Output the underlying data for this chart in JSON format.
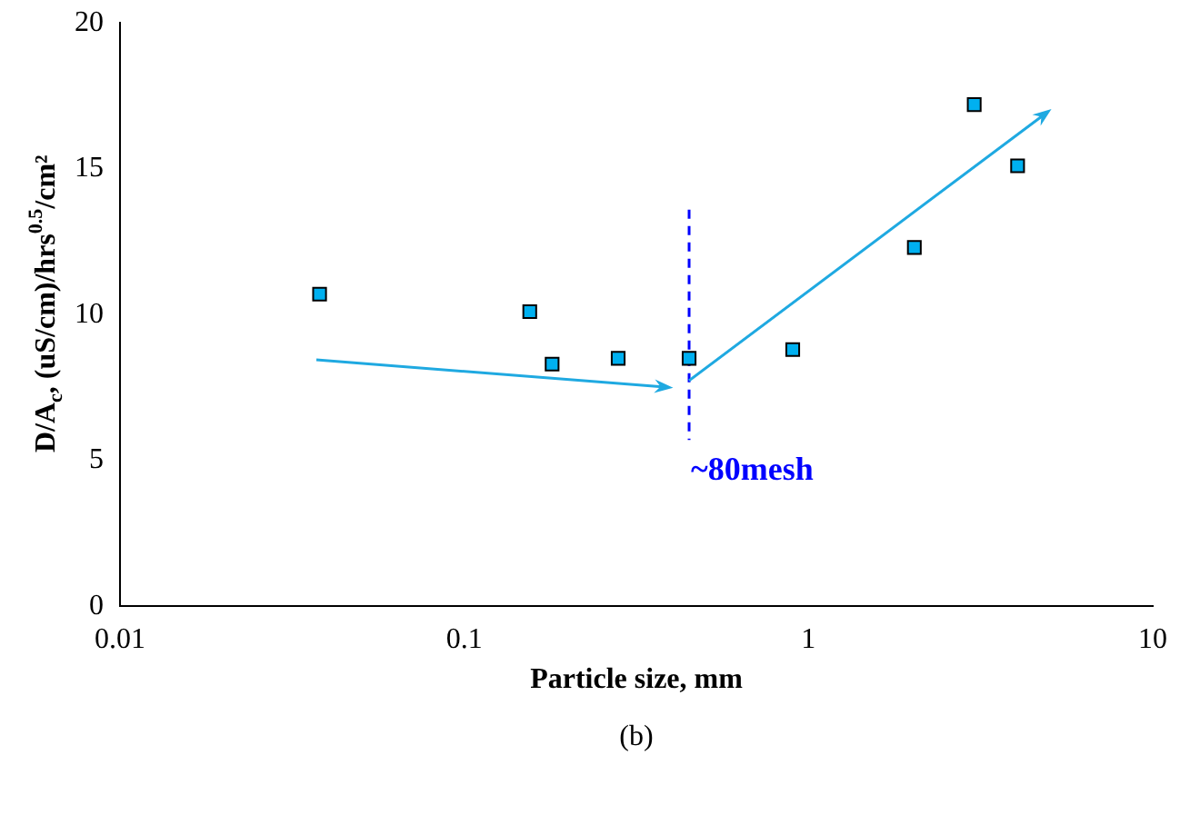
{
  "chart_data": {
    "type": "scatter",
    "xlabel": "Particle size, mm",
    "ylabel": "D/A$_{c}$, (uS/cm)/hrs$^{0.5}$/cm²",
    "log": "x",
    "xlim": [
      0.01,
      10
    ],
    "xticks": [
      0.01,
      0.1,
      1,
      10
    ],
    "ylim": [
      0,
      20
    ],
    "yticks": [
      0,
      5,
      10,
      15,
      20
    ],
    "grid": false,
    "series": [
      {
        "marker": "square",
        "color": "#00b0f0",
        "x": [
          0.038,
          0.155,
          0.18,
          0.28,
          0.45,
          0.9,
          2.03,
          3.03,
          4.05
        ],
        "values": [
          10.7,
          10.1,
          8.3,
          8.5,
          8.5,
          8.8,
          12.3,
          17.2,
          15.1
        ]
      },
      {
        "type": "line",
        "marker": "none",
        "line_style": "dashed",
        "color": "#0000ff",
        "x": [
          0.45,
          0.45
        ],
        "values": [
          13.6,
          5.7
        ]
      }
    ],
    "annotations": [
      "~80mesh",
      "(b)"
    ]
  }
}
